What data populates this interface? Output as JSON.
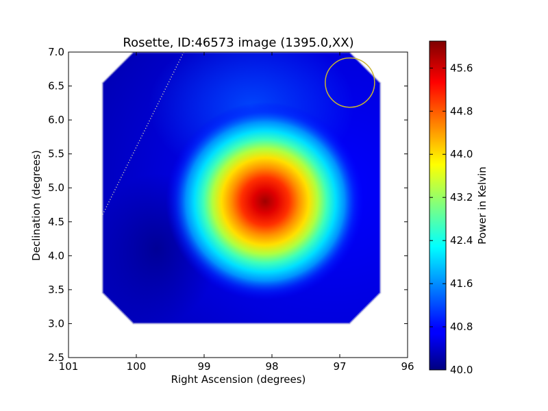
{
  "chart_data": {
    "type": "heatmap",
    "title": "Rosette, ID:46573 image (1395.0,XX)",
    "xlabel": "Right Ascension (degrees)",
    "ylabel": "Declination (degrees)",
    "xlim": [
      101,
      96
    ],
    "ylim": [
      2.5,
      7.0
    ],
    "x_ticks": [
      "101",
      "100",
      "99",
      "98",
      "97",
      "96"
    ],
    "y_ticks": [
      "2.5",
      "3.0",
      "3.5",
      "4.0",
      "4.5",
      "5.0",
      "5.5",
      "6.0",
      "6.5",
      "7.0"
    ],
    "colorbar": {
      "label": "Power in Kelvin",
      "colormap": "jet",
      "range": [
        40.0,
        46.1
      ],
      "ticks": [
        "40.0",
        "40.8",
        "41.6",
        "42.4",
        "43.2",
        "44.0",
        "44.8",
        "45.6"
      ]
    },
    "peak": {
      "ra": 98.1,
      "dec": 4.8,
      "value": 46.1
    },
    "field_of_view": {
      "ra_range": [
        100.5,
        96.4
      ],
      "dec_range": [
        3.0,
        7.0
      ]
    },
    "beam_circle": {
      "ra": 96.85,
      "dec": 6.55,
      "color": "#c8b432"
    },
    "dotted_line": {
      "start": {
        "ra": 99.3,
        "dec": 7.0
      },
      "end": {
        "ra": 100.5,
        "dec": 4.6
      }
    }
  }
}
